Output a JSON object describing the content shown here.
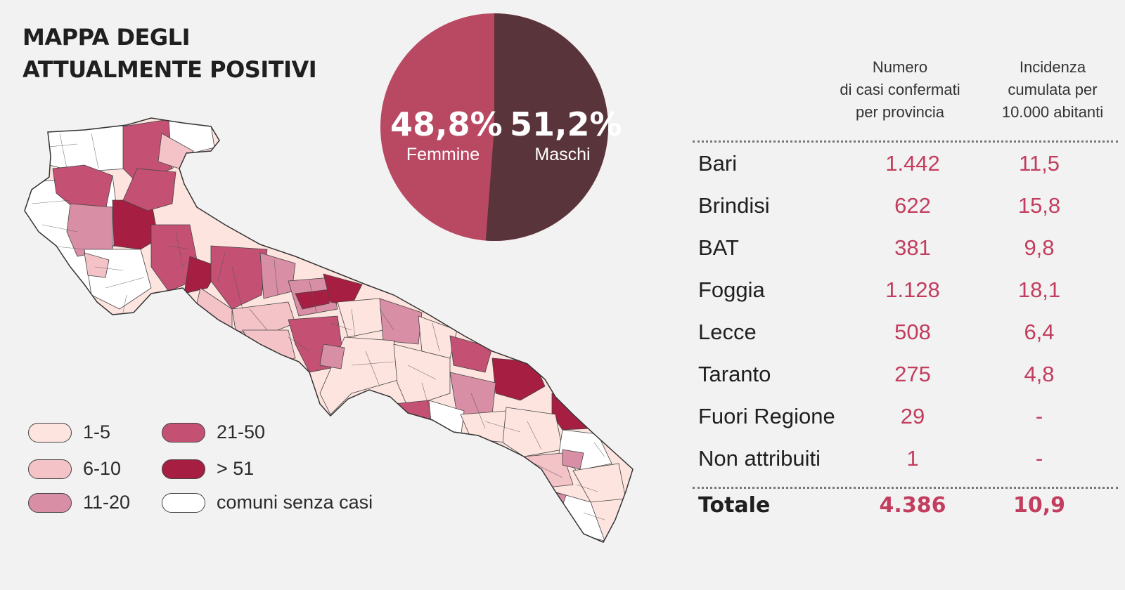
{
  "title": {
    "line1": "MAPPA DEGLI",
    "line2": "ATTUALMENTE POSITIVI"
  },
  "pie": {
    "femmine": {
      "percent": "48,8%",
      "label": "Femmine",
      "value": 48.8,
      "color": "#b94862"
    },
    "maschi": {
      "percent": "51,2%",
      "label": "Maschi",
      "value": 51.2,
      "color": "#5a343b"
    }
  },
  "legend": [
    {
      "label": "1-5",
      "color": "#fde4df"
    },
    {
      "label": "6-10",
      "color": "#f4c3c7"
    },
    {
      "label": "11-20",
      "color": "#d88ea4"
    },
    {
      "label": "21-50",
      "color": "#c45173"
    },
    {
      "label": "> 51",
      "color": "#a71e43"
    },
    {
      "label": "comuni senza casi",
      "color": "#ffffff"
    }
  ],
  "table": {
    "header_numero": [
      "Numero",
      "di casi confermati",
      "per provincia"
    ],
    "header_incidenza": [
      "Incidenza",
      "cumulata per",
      "10.000 abitanti"
    ],
    "rows": [
      {
        "name": "Bari",
        "num": "1.442",
        "inc": "11,5"
      },
      {
        "name": "Brindisi",
        "num": "622",
        "inc": "15,8"
      },
      {
        "name": "BAT",
        "num": "381",
        "inc": "9,8"
      },
      {
        "name": "Foggia",
        "num": "1.128",
        "inc": "18,1"
      },
      {
        "name": "Lecce",
        "num": "508",
        "inc": "6,4"
      },
      {
        "name": "Taranto",
        "num": "275",
        "inc": "4,8"
      },
      {
        "name": "Fuori Regione",
        "num": "29",
        "inc": "-"
      },
      {
        "name": "Non attribuiti",
        "num": "1",
        "inc": "-"
      }
    ],
    "total": {
      "name": "Totale",
      "num": "4.386",
      "inc": "10,9"
    }
  }
}
